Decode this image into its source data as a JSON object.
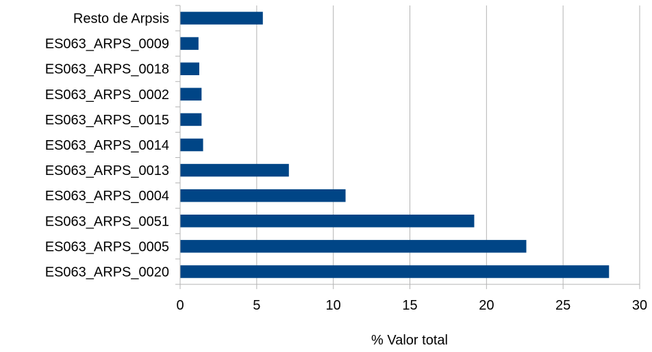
{
  "chart_data": {
    "type": "bar",
    "orientation": "horizontal",
    "categories": [
      "Resto de Arpsis",
      "ES063_ARPS_0009",
      "ES063_ARPS_0018",
      "ES063_ARPS_0002",
      "ES063_ARPS_0015",
      "ES063_ARPS_0014",
      "ES063_ARPS_0013",
      "ES063_ARPS_0004",
      "ES063_ARPS_0051",
      "ES063_ARPS_0005",
      "ES063_ARPS_0020"
    ],
    "values": [
      5.4,
      1.2,
      1.25,
      1.4,
      1.4,
      1.5,
      7.1,
      10.8,
      19.2,
      22.6,
      28.0
    ],
    "xlabel": "% Valor total",
    "ylabel": "",
    "title": "",
    "xlim": [
      0,
      30
    ],
    "xticks": [
      0,
      5,
      10,
      15,
      20,
      25,
      30
    ],
    "grid": "vertical",
    "legend": "none",
    "bar_color": "#004586",
    "grid_color": "#b3b3b3",
    "axis_color": "#b3b3b3"
  }
}
